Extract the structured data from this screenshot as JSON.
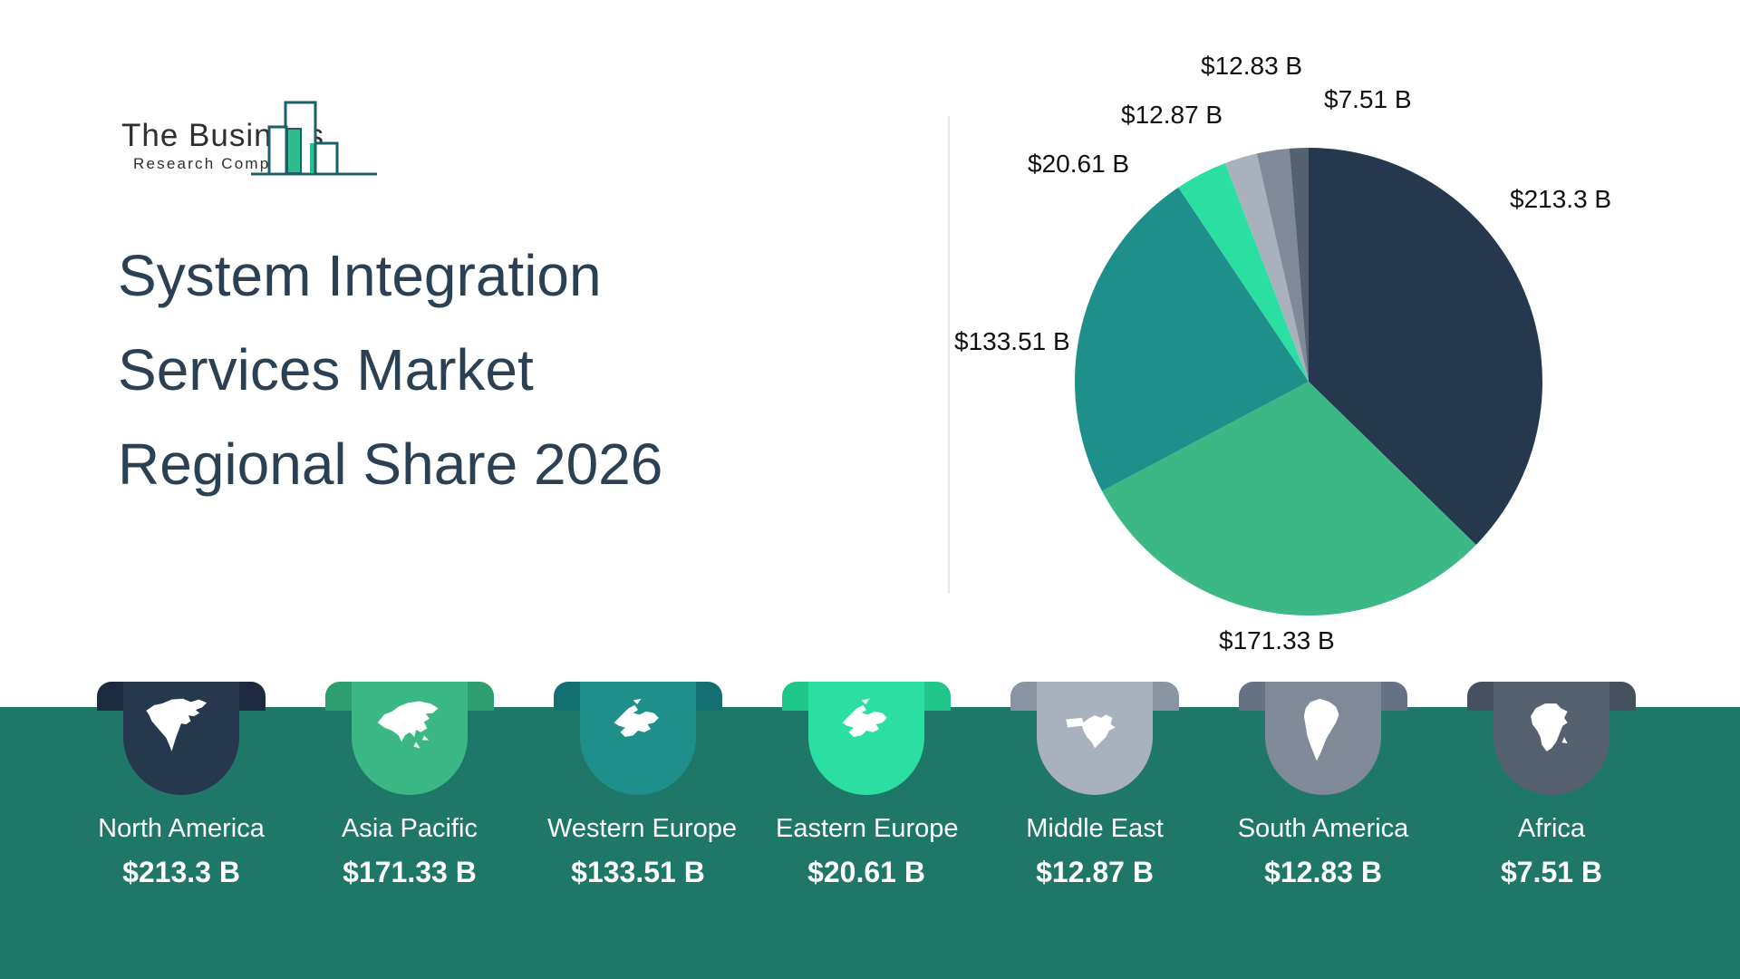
{
  "logo": {
    "line1": "The Business",
    "line2": "Research Company",
    "icon": "bar-chart-logo-icon",
    "outline_color": "#1C5F68",
    "bar_fill_color": "#2EBD8C"
  },
  "title": {
    "lines": [
      "System Integration",
      "Services Market",
      "Regional Share 2026"
    ],
    "color": "#2B4053"
  },
  "chart_data": {
    "type": "pie",
    "title": "System Integration Services Market Regional Share 2026",
    "categories": [
      "North America",
      "Asia Pacific",
      "Western Europe",
      "Eastern Europe",
      "Middle East",
      "South America",
      "Africa"
    ],
    "values": [
      213.3,
      171.33,
      133.51,
      20.61,
      12.87,
      12.83,
      7.51
    ],
    "labels": [
      "$213.3 B",
      "$171.33 B",
      "$133.51 B",
      "$20.61 B",
      "$12.87 B",
      "$12.83 B",
      "$7.51 B"
    ],
    "colors": [
      "#25384E",
      "#3CB886",
      "#1F8F8B",
      "#2BDFA2",
      "#A9B1BD",
      "#7F8998",
      "#56616F"
    ],
    "start_angle_deg": 0,
    "direction": "clockwise",
    "legend_position": "bottom"
  },
  "legend": {
    "items": [
      {
        "name": "North America",
        "value": "$213.3 B",
        "color": "#25384E",
        "ear_color": "#1B2A3E",
        "icon": "north-america-icon"
      },
      {
        "name": "Asia Pacific",
        "value": "$171.33 B",
        "color": "#3CB886",
        "ear_color": "#2E9F70",
        "icon": "asia-pacific-icon"
      },
      {
        "name": "Western Europe",
        "value": "$133.51 B",
        "color": "#1F8F8B",
        "ear_color": "#146F70",
        "icon": "western-europe-icon"
      },
      {
        "name": "Eastern Europe",
        "value": "$20.61 B",
        "color": "#2BDFA2",
        "ear_color": "#21C78A",
        "icon": "eastern-europe-icon"
      },
      {
        "name": "Middle East",
        "value": "$12.87 B",
        "color": "#A9B1BD",
        "ear_color": "#8A95A3",
        "icon": "middle-east-icon"
      },
      {
        "name": "South America",
        "value": "$12.83 B",
        "color": "#7F8998",
        "ear_color": "#677284",
        "icon": "south-america-icon"
      },
      {
        "name": "Africa",
        "value": "$7.51 B",
        "color": "#56616F",
        "ear_color": "#46505E",
        "icon": "africa-icon"
      }
    ]
  },
  "colors": {
    "background": "#FFFFFF",
    "bottom_band": "#1F7767",
    "divider": "#E7E7F0",
    "pie_label_text": "#0F1013",
    "legend_text": "#FFFFFF"
  }
}
